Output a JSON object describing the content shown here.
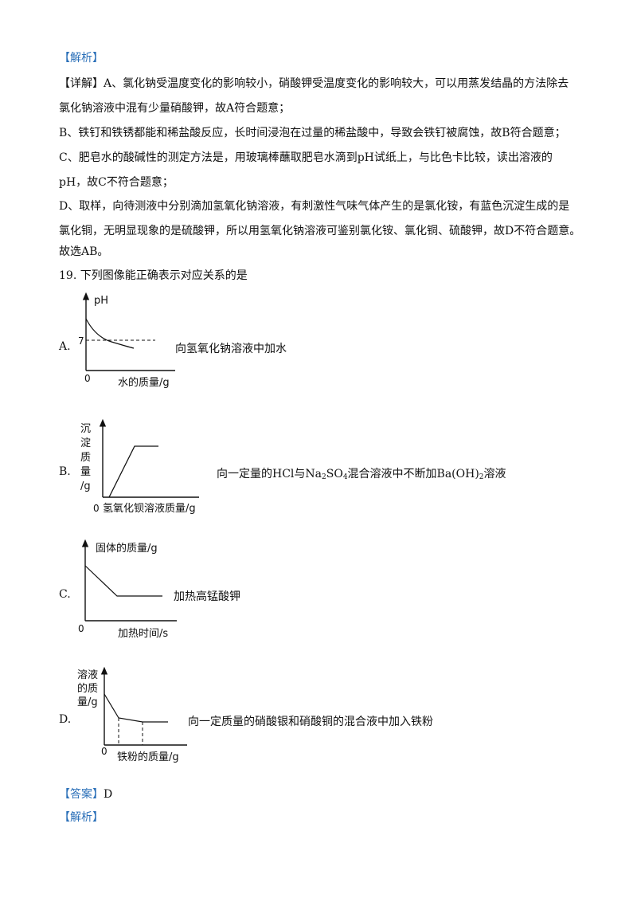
{
  "header_tag": "【解析】",
  "detail": {
    "tag": "【详解】",
    "A_line1": "A、氯化钠受温度变化的影响较小，硝酸钾受温度变化的影响较大，可以用蒸发结晶的方法除去",
    "A_line2": "氯化钠溶液中混有少量硝酸钾，故A符合题意；",
    "B_line": "B、铁钉和铁锈都能和稀盐酸反应，长时间浸泡在过量的稀盐酸中，导致会铁钉被腐蚀，故B符合题意；",
    "C_line1": "C、肥皂水的酸碱性的测定方法是，用玻璃棒蘸取肥皂水滴到pH试纸上，与比色卡比较，读出溶液的",
    "C_line2": "pH，故C不符合题意；",
    "D_line1": "D、取样，向待测液中分别滴加氢氧化钠溶液，有刺激性气味气体产生的是氯化铵，有蓝色沉淀生成的是",
    "D_line2": "氯化铜，无明显现象的是硫酸钾，所以用氢氧化钠溶液可鉴别氯化铵、氯化铜、硫酸钾，故D不符合题意。",
    "conclusion": "故选AB。"
  },
  "question": "19. 下列图像能正确表示对应关系的是",
  "options": [
    {
      "letter": "A.",
      "desc": "向氢氧化钠溶液中加水",
      "y_label": "pH",
      "x_label": "水的质量/g",
      "origin": "0",
      "tick": "7"
    },
    {
      "letter": "B.",
      "desc_pre": "向一定量的HCl与Na",
      "desc_sub1": "2",
      "desc_mid": "SO",
      "desc_sub2": "4",
      "desc_mid2": "混合溶液中不断加Ba(OH)",
      "desc_sub3": "2",
      "desc_post": "溶液",
      "y_label": [
        "沉",
        "淀",
        "质",
        "量",
        "/g"
      ],
      "x_label": "氢氧化钡溶液质量/g",
      "origin": "0"
    },
    {
      "letter": "C.",
      "desc": "加热高锰酸钾",
      "y_label": "固体的质量/g",
      "x_label": "加热时间/s",
      "origin": "0"
    },
    {
      "letter": "D.",
      "desc": "向一定质量的硝酸银和硝酸铜的混合液中加入铁粉",
      "y_label": [
        "溶液",
        "的质",
        "量/g"
      ],
      "x_label": "铁粉的质量/g",
      "origin": "0"
    }
  ],
  "answer_tag": "【答案】",
  "answer_value": "D",
  "analysis_tag": "【解析】"
}
